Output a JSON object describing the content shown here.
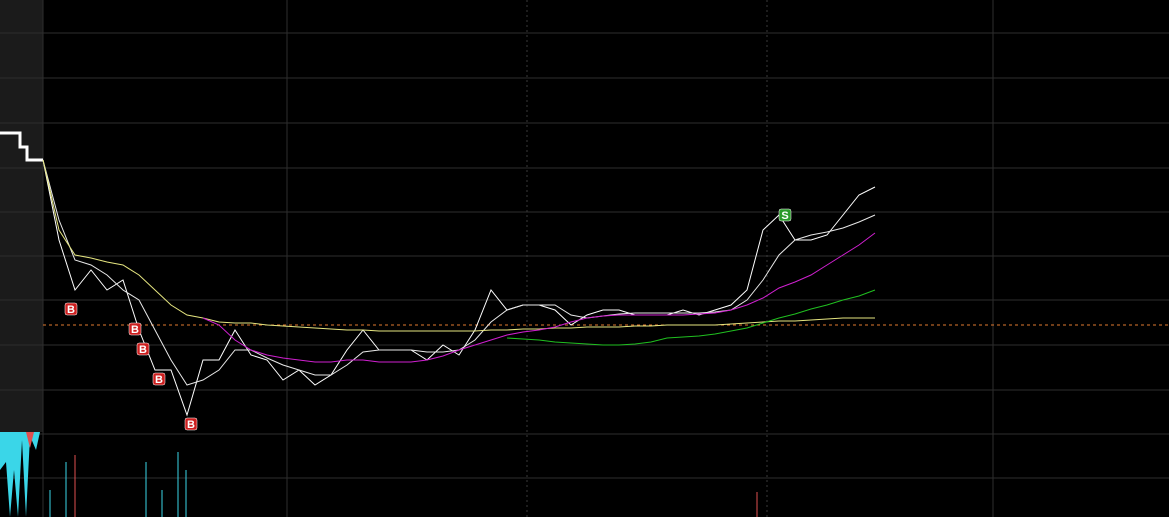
{
  "chart_data": {
    "type": "line",
    "x": [
      0,
      4,
      8,
      12,
      16,
      20,
      24,
      28,
      32,
      36,
      40,
      44,
      48,
      52,
      56,
      60,
      64,
      68,
      72,
      76,
      80,
      84,
      88,
      92,
      96,
      100,
      104,
      108,
      112,
      116,
      120,
      124,
      128,
      132,
      136,
      140,
      144,
      148,
      152,
      156,
      160,
      164,
      168,
      172,
      176,
      180,
      184,
      188,
      192,
      196,
      200,
      204,
      208
    ],
    "xlim": [
      0,
      281.5
    ],
    "ylim": [
      -10,
      30
    ],
    "reference_line": 0,
    "series": [
      {
        "color": "#ffffff",
        "values": [
          16.5,
          8.5,
          3.5,
          5.5,
          3.5,
          4.5,
          -0.5,
          -4.5,
          -4.5,
          -9,
          -3.5,
          -3.5,
          -0.5,
          -3,
          -3.5,
          -5.5,
          -4.5,
          -6,
          -5,
          -2.5,
          -0.5,
          -2.5,
          -2.5,
          -2.5,
          -3.5,
          -2,
          -3,
          -0.5,
          3.5,
          1.5,
          2,
          2,
          1.5,
          0,
          1,
          1.5,
          1.5,
          1,
          1,
          1,
          1.5,
          1,
          1.5,
          2,
          3.5,
          9.5,
          11,
          8.5,
          8.5,
          9,
          11,
          13,
          13.8
        ]
      },
      {
        "color": "#e8e8e8",
        "values": [
          16.5,
          10.5,
          6.5,
          6,
          5,
          3.5,
          2.5,
          -0.5,
          -3.5,
          -6,
          -5.5,
          -4.5,
          -2.5,
          -2.5,
          -3.3,
          -4,
          -4.5,
          -5,
          -5,
          -4,
          -2.7,
          -2.5,
          -2.5,
          -2.5,
          -2.7,
          -2.7,
          -2.5,
          -1.5,
          0.3,
          1.5,
          2,
          2,
          2,
          1,
          0.7,
          0.9,
          1.1,
          1.2,
          1.2,
          1.2,
          1.2,
          1.2,
          1.3,
          1.5,
          2.5,
          4.5,
          7,
          8.5,
          9,
          9.3,
          9.7,
          10.3,
          11
        ]
      },
      {
        "color": "#e6e680",
        "values": [
          16.5,
          9.5,
          7,
          6.7,
          6.3,
          6,
          5,
          3.5,
          2,
          1,
          0.7,
          0.3,
          0.2,
          0.2,
          0,
          -0.1,
          -0.2,
          -0.3,
          -0.4,
          -0.5,
          -0.5,
          -0.6,
          -0.6,
          -0.6,
          -0.6,
          -0.6,
          -0.6,
          -0.6,
          -0.5,
          -0.5,
          -0.4,
          -0.4,
          -0.3,
          -0.3,
          -0.2,
          -0.2,
          -0.2,
          -0.1,
          -0.1,
          0,
          0,
          0,
          0,
          0.1,
          0.2,
          0.3,
          0.4,
          0.4,
          0.5,
          0.6,
          0.7,
          0.7,
          0.7
        ]
      },
      {
        "color": "#d020d0",
        "values": [
          null,
          null,
          null,
          null,
          null,
          null,
          null,
          null,
          null,
          null,
          0.7,
          0,
          -1.5,
          -2.5,
          -3,
          -3.3,
          -3.5,
          -3.7,
          -3.7,
          -3.5,
          -3.5,
          -3.7,
          -3.7,
          -3.7,
          -3.5,
          -3.1,
          -2.5,
          -2,
          -1.5,
          -1,
          -0.7,
          -0.5,
          -0.2,
          0.3,
          0.7,
          0.9,
          1,
          1,
          1,
          1,
          1,
          1.1,
          1.2,
          1.5,
          2,
          2.7,
          3.7,
          4.3,
          5,
          6,
          7,
          8,
          9.2
        ]
      },
      {
        "color": "#20c020",
        "values": [
          null,
          null,
          null,
          null,
          null,
          null,
          null,
          null,
          null,
          null,
          null,
          null,
          null,
          null,
          null,
          null,
          null,
          null,
          null,
          null,
          null,
          null,
          null,
          null,
          null,
          null,
          null,
          null,
          null,
          -1.3,
          -1.4,
          -1.5,
          -1.7,
          -1.8,
          -1.9,
          -2,
          -2,
          -1.9,
          -1.7,
          -1.3,
          -1.2,
          -1.1,
          -0.9,
          -0.6,
          -0.3,
          0.2,
          0.7,
          1.1,
          1.6,
          2,
          2.5,
          2.9,
          3.5
        ]
      }
    ],
    "annotations": [
      {
        "label": "B",
        "x": 7,
        "y": 2.5,
        "color": "#cc1f1f"
      },
      {
        "label": "B",
        "x": 23,
        "y": 0.5,
        "color": "#cc1f1f"
      },
      {
        "label": "B",
        "x": 25,
        "y": -1.5,
        "color": "#cc1f1f"
      },
      {
        "label": "B",
        "x": 29,
        "y": -4.5,
        "color": "#cc1f1f"
      },
      {
        "label": "B",
        "x": 37,
        "y": -9,
        "color": "#cc1f1f"
      },
      {
        "label": "S",
        "x": 185.5,
        "y": 11,
        "color": "#2a9a2a"
      }
    ]
  }
}
